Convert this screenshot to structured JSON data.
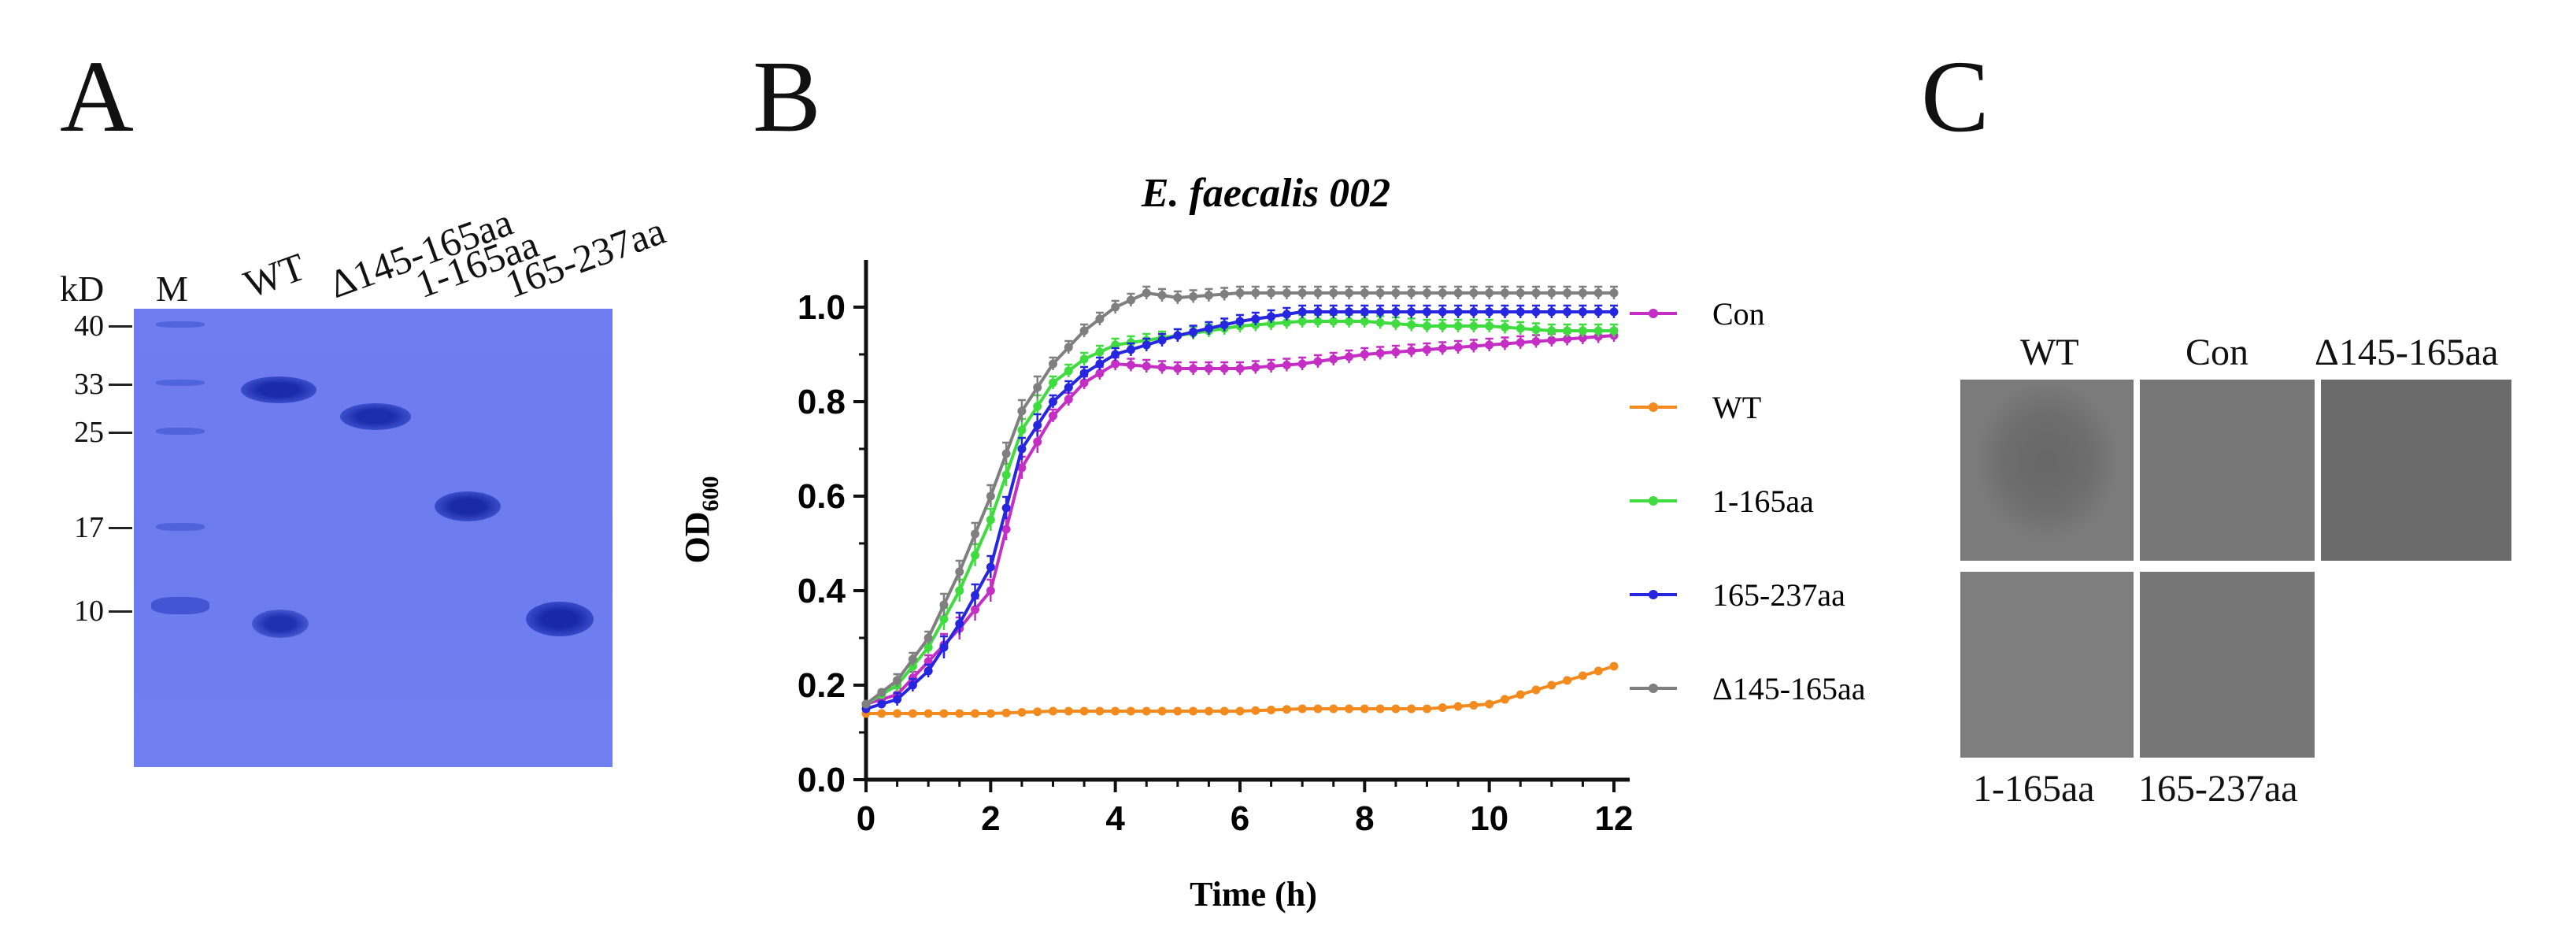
{
  "panels": {
    "a": "A",
    "b": "B",
    "c": "C"
  },
  "gel": {
    "unit": "kD",
    "marker_label": "M",
    "lanes": [
      "WT",
      "Δ145-165aa",
      "1-165aa",
      "165-237aa"
    ],
    "marker_sizes": [
      "40",
      "33",
      "25",
      "17",
      "10"
    ]
  },
  "chart_data": {
    "type": "line",
    "title": "E. faecalis 002",
    "xlabel": "Time (h)",
    "ylabel": "OD600",
    "ylabel_main": "OD",
    "ylabel_sub": "600",
    "xlim": [
      0,
      12
    ],
    "ylim": [
      0,
      1.1
    ],
    "xticks": [
      "0",
      "2",
      "4",
      "6",
      "8",
      "10",
      "12"
    ],
    "yticks": [
      "0.0",
      "0.2",
      "0.4",
      "0.6",
      "0.8",
      "1.0"
    ],
    "legend_position": "right",
    "series": [
      {
        "name": "Con",
        "color": "#c42ec4",
        "x": [
          0,
          0.5,
          1,
          1.5,
          2,
          2.5,
          3,
          3.5,
          4,
          5,
          6,
          7,
          8,
          9,
          10,
          11,
          12
        ],
        "y": [
          0.16,
          0.18,
          0.25,
          0.32,
          0.4,
          0.66,
          0.77,
          0.84,
          0.88,
          0.87,
          0.87,
          0.88,
          0.9,
          0.91,
          0.92,
          0.93,
          0.94
        ]
      },
      {
        "name": "WT",
        "color": "#f28a1e",
        "x": [
          0,
          1,
          2,
          3,
          4,
          5,
          6,
          7,
          8,
          9,
          9.5,
          10,
          10.5,
          11,
          11.5,
          12
        ],
        "y": [
          0.14,
          0.14,
          0.14,
          0.145,
          0.145,
          0.145,
          0.145,
          0.15,
          0.15,
          0.15,
          0.155,
          0.16,
          0.18,
          0.2,
          0.22,
          0.24
        ]
      },
      {
        "name": "1-165aa",
        "color": "#3fdc3f",
        "x": [
          0,
          0.5,
          1,
          1.5,
          2,
          2.5,
          3,
          3.5,
          4,
          5,
          6,
          7,
          8,
          9,
          10,
          11,
          12
        ],
        "y": [
          0.16,
          0.2,
          0.28,
          0.4,
          0.55,
          0.74,
          0.84,
          0.89,
          0.92,
          0.94,
          0.96,
          0.97,
          0.97,
          0.96,
          0.96,
          0.95,
          0.95
        ]
      },
      {
        "name": "165-237aa",
        "color": "#2626e0",
        "x": [
          0,
          0.5,
          1,
          1.5,
          2,
          2.5,
          3,
          3.5,
          4,
          5,
          6,
          7,
          8,
          9,
          10,
          11,
          12
        ],
        "y": [
          0.15,
          0.17,
          0.23,
          0.33,
          0.45,
          0.7,
          0.8,
          0.86,
          0.9,
          0.94,
          0.97,
          0.99,
          0.99,
          0.99,
          0.99,
          0.99,
          0.99
        ]
      },
      {
        "name": "Δ145-165aa",
        "color": "#7f7f7f",
        "x": [
          0,
          0.5,
          1,
          1.5,
          2,
          2.5,
          3,
          3.5,
          4,
          4.5,
          5,
          6,
          7,
          8,
          9,
          10,
          11,
          12
        ],
        "y": [
          0.16,
          0.21,
          0.3,
          0.44,
          0.6,
          0.78,
          0.88,
          0.95,
          1.0,
          1.03,
          1.02,
          1.03,
          1.03,
          1.03,
          1.03,
          1.03,
          1.03,
          1.03
        ]
      }
    ]
  },
  "plates": {
    "labels_top": [
      "WT",
      "Con",
      "Δ145-165aa"
    ],
    "labels_bottom": [
      "1-165aa",
      "165-237aa"
    ]
  }
}
